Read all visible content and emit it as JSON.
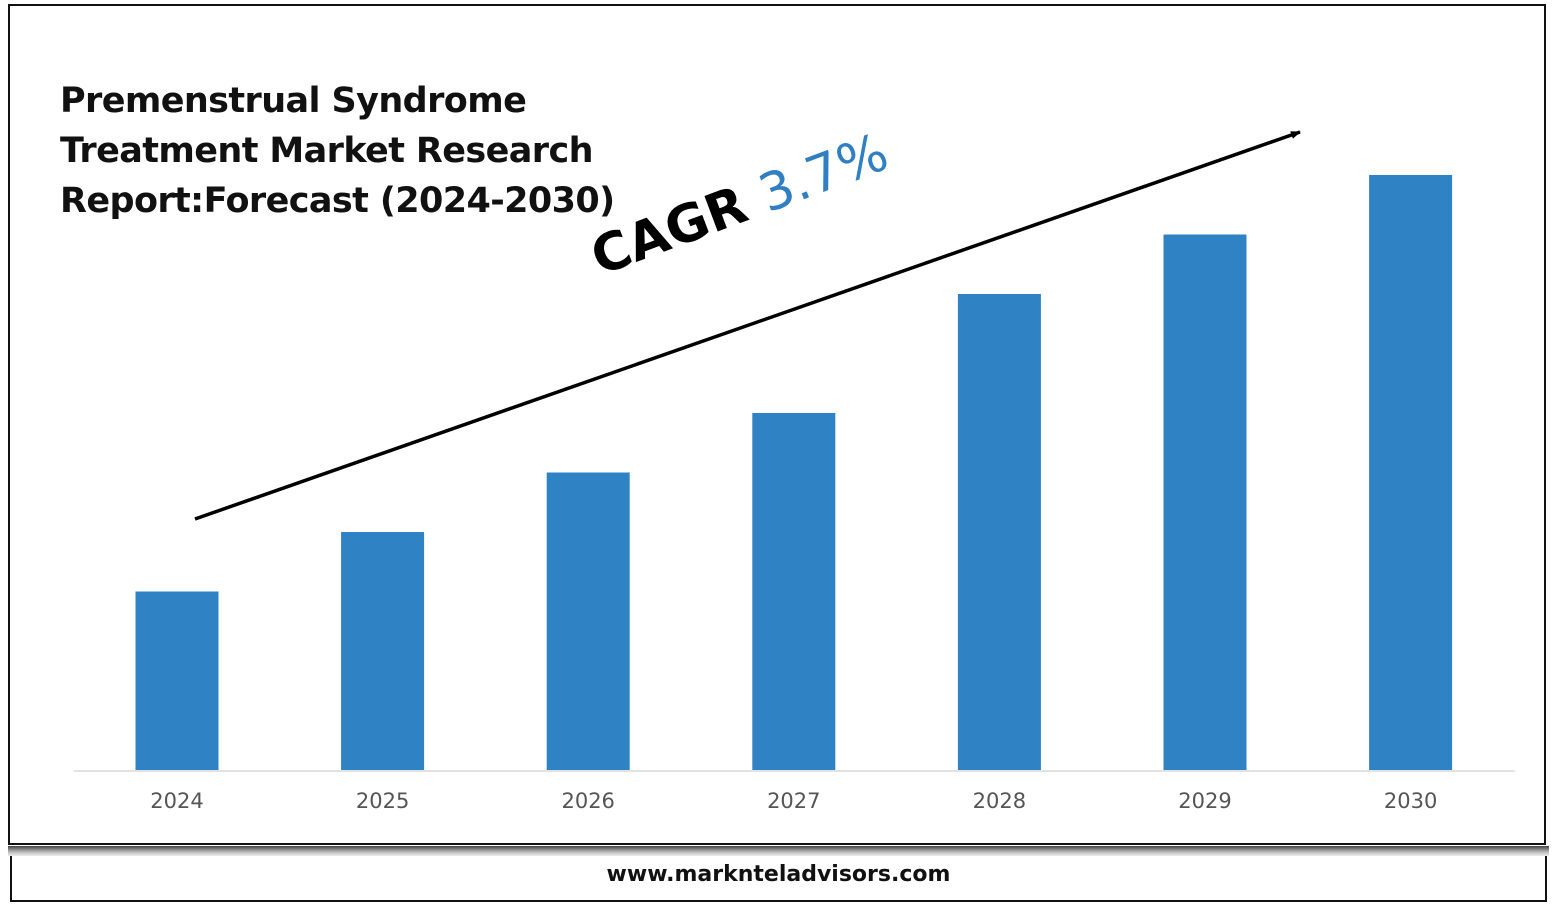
{
  "chart_data": {
    "type": "bar",
    "title": "Premenstrual Syndrome Treatment Market Research Report:Forecast (2024-2030)",
    "categories": [
      "2024",
      "2025",
      "2026",
      "2027",
      "2028",
      "2029",
      "2030"
    ],
    "values": [
      30,
      40,
      50,
      60,
      80,
      90,
      100
    ],
    "ylim": [
      0,
      100
    ],
    "grid": false,
    "bar_color": "#2f82c4",
    "annotation": {
      "prefix": "CAGR",
      "value": "3.7%",
      "value_color": "#2f7fc2"
    }
  },
  "footer": {
    "url": "www.marknteladvisors.com"
  }
}
